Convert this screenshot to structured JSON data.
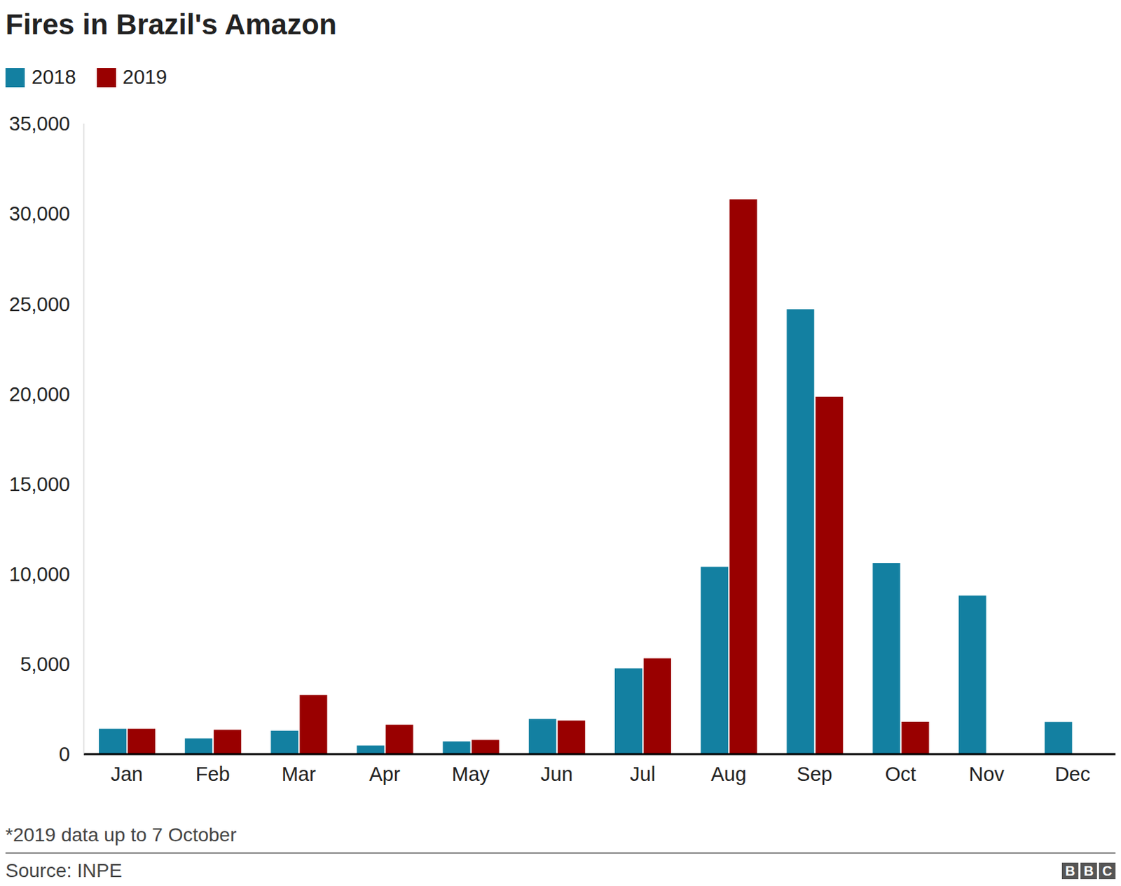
{
  "chart_data": {
    "type": "bar",
    "title": "Fires in Brazil's Amazon",
    "categories": [
      "Jan",
      "Feb",
      "Mar",
      "Apr",
      "May",
      "Jun",
      "Jul",
      "Aug",
      "Sep",
      "Oct",
      "Nov",
      "Dec"
    ],
    "series": [
      {
        "name": "2018",
        "color": "#1380a1",
        "values": [
          1400,
          870,
          1300,
          480,
          710,
          1950,
          4760,
          10400,
          24700,
          10600,
          8800,
          1780
        ]
      },
      {
        "name": "2019",
        "color": "#990000",
        "values": [
          1400,
          1350,
          3290,
          1630,
          790,
          1870,
          5320,
          30800,
          19840,
          1790,
          null,
          null
        ]
      }
    ],
    "ylim": [
      0,
      35000
    ],
    "yticks": [
      0,
      {
        "value": 5000,
        "label": "5,000"
      },
      {
        "value": 10000,
        "label": "10,000"
      },
      {
        "value": 15000,
        "label": "15,000"
      },
      {
        "value": 20000,
        "label": "20,000"
      },
      {
        "value": 25000,
        "label": "25,000"
      },
      {
        "value": 30000,
        "label": "30,000"
      },
      {
        "value": 35000,
        "label": "35,000"
      }
    ],
    "grid": false,
    "legend": "top-left",
    "footnote": "*2019 data up to 7 October",
    "source": "Source: INPE",
    "logo": "BBC"
  }
}
